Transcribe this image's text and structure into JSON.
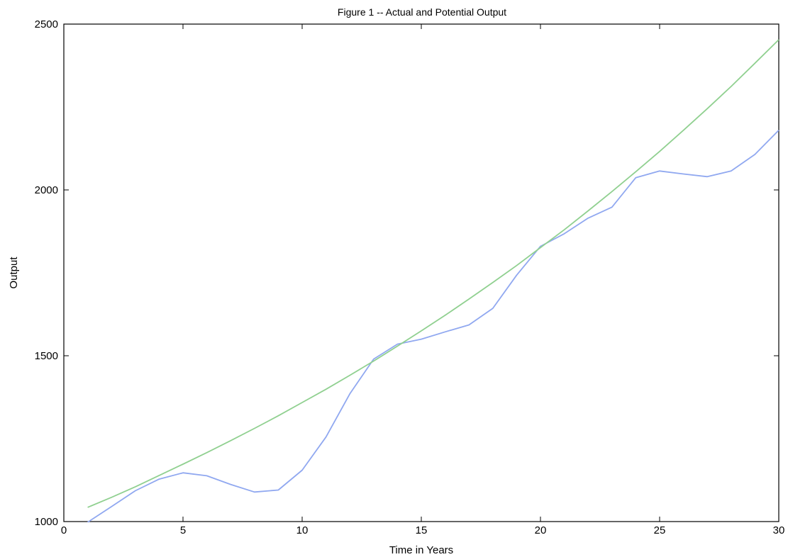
{
  "chart_data": {
    "type": "line",
    "title": "Figure 1 -- Actual and Potential Output",
    "xlabel": "Time in Years",
    "ylabel": "Output",
    "xlim": [
      0,
      30
    ],
    "ylim": [
      1000,
      2500
    ],
    "xticks": [
      0,
      5,
      10,
      15,
      20,
      25,
      30
    ],
    "yticks": [
      1000,
      1500,
      2000,
      2500
    ],
    "grid": false,
    "legend": "none",
    "x": [
      1,
      2,
      3,
      4,
      5,
      6,
      7,
      8,
      9,
      10,
      11,
      12,
      13,
      14,
      15,
      16,
      17,
      18,
      19,
      20,
      21,
      22,
      23,
      24,
      25,
      26,
      27,
      28,
      29,
      30
    ],
    "series": [
      {
        "color": "#90a8f0",
        "values": [
          998,
          1045,
          1093,
          1128,
          1147,
          1138,
          1112,
          1089,
          1095,
          1155,
          1255,
          1385,
          1490,
          1535,
          1550,
          1572,
          1593,
          1643,
          1743,
          1830,
          1868,
          1915,
          1948,
          2037,
          2057,
          2048,
          2040,
          2057,
          2107,
          2180
        ]
      },
      {
        "color": "#90d090",
        "values": [
          1043,
          1073,
          1105,
          1139,
          1173,
          1208,
          1244,
          1281,
          1319,
          1359,
          1399,
          1441,
          1484,
          1529,
          1575,
          1622,
          1671,
          1721,
          1772,
          1826,
          1880,
          1937,
          1995,
          2055,
          2116,
          2180,
          2245,
          2312,
          2382,
          2453
        ]
      }
    ]
  }
}
